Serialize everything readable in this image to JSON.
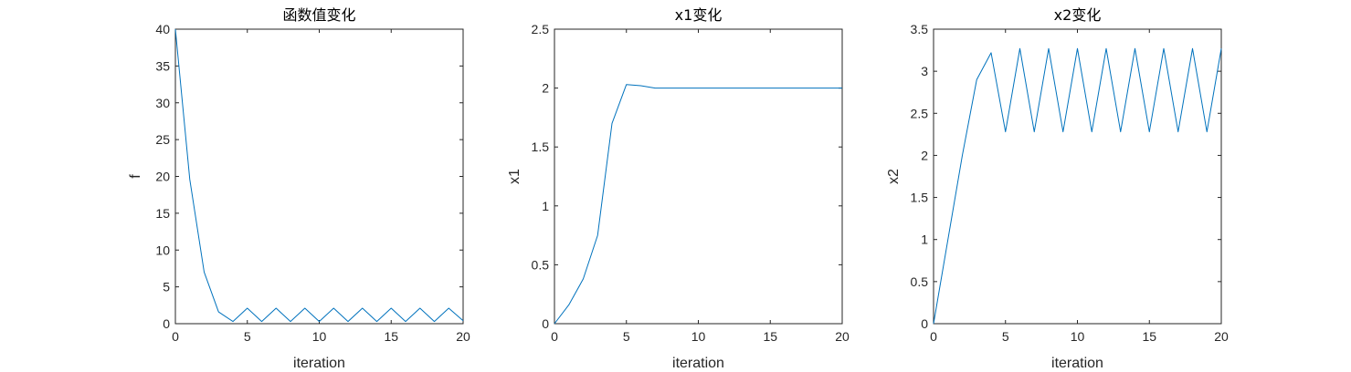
{
  "colors": {
    "series": "#0072bd",
    "axis": "#262626",
    "background": "#ffffff"
  },
  "chart_data": [
    {
      "type": "line",
      "title": "函数值变化",
      "xlabel": "iteration",
      "ylabel": "f",
      "xlim": [
        0,
        20
      ],
      "ylim": [
        0,
        40
      ],
      "xticks": [
        0,
        5,
        10,
        15,
        20
      ],
      "yticks": [
        0,
        5,
        10,
        15,
        20,
        25,
        30,
        35,
        40
      ],
      "xtick_labels": [
        "0",
        "5",
        "10",
        "15",
        "20"
      ],
      "ytick_labels": [
        "0",
        "5",
        "10",
        "15",
        "20",
        "25",
        "30",
        "35",
        "40"
      ],
      "grid": false,
      "series": [
        {
          "x": [
            0,
            1,
            2,
            3,
            4,
            5,
            6,
            7,
            8,
            9,
            10,
            11,
            12,
            13,
            14,
            15,
            16,
            17,
            18,
            19,
            20
          ],
          "values": [
            40,
            19.6,
            7.0,
            1.6,
            0.3,
            2.1,
            0.3,
            2.1,
            0.3,
            2.1,
            0.3,
            2.1,
            0.3,
            2.1,
            0.3,
            2.1,
            0.3,
            2.1,
            0.3,
            2.1,
            0.4
          ]
        }
      ]
    },
    {
      "type": "line",
      "title": "x1变化",
      "xlabel": "iteration",
      "ylabel": "x1",
      "xlim": [
        0,
        20
      ],
      "ylim": [
        0,
        2.5
      ],
      "xticks": [
        0,
        5,
        10,
        15,
        20
      ],
      "yticks": [
        0,
        0.5,
        1,
        1.5,
        2,
        2.5
      ],
      "xtick_labels": [
        "0",
        "5",
        "10",
        "15",
        "20"
      ],
      "ytick_labels": [
        "0",
        "0.5",
        "1",
        "1.5",
        "2",
        "2.5"
      ],
      "grid": false,
      "series": [
        {
          "x": [
            0,
            1,
            2,
            3,
            4,
            5,
            6,
            7,
            8,
            9,
            10,
            11,
            12,
            13,
            14,
            15,
            16,
            17,
            18,
            19,
            20
          ],
          "values": [
            0,
            0.16,
            0.38,
            0.75,
            1.7,
            2.03,
            2.02,
            2.0,
            2.0,
            2.0,
            2.0,
            2.0,
            2.0,
            2.0,
            2.0,
            2.0,
            2.0,
            2.0,
            2.0,
            2.0,
            2.0
          ]
        }
      ]
    },
    {
      "type": "line",
      "title": "x2变化",
      "xlabel": "iteration",
      "ylabel": "x2",
      "xlim": [
        0,
        20
      ],
      "ylim": [
        0,
        3.5
      ],
      "xticks": [
        0,
        5,
        10,
        15,
        20
      ],
      "yticks": [
        0,
        0.5,
        1,
        1.5,
        2,
        2.5,
        3,
        3.5
      ],
      "xtick_labels": [
        "0",
        "5",
        "10",
        "15",
        "20"
      ],
      "ytick_labels": [
        "0",
        "0.5",
        "1",
        "1.5",
        "2",
        "2.5",
        "3",
        "3.5"
      ],
      "grid": false,
      "series": [
        {
          "x": [
            0,
            1,
            2,
            3,
            4,
            5,
            6,
            7,
            8,
            9,
            10,
            11,
            12,
            13,
            14,
            15,
            16,
            17,
            18,
            19,
            20
          ],
          "values": [
            0,
            1.0,
            2.0,
            2.9,
            3.22,
            2.28,
            3.27,
            2.28,
            3.27,
            2.28,
            3.27,
            2.28,
            3.27,
            2.28,
            3.27,
            2.28,
            3.27,
            2.28,
            3.27,
            2.28,
            3.27
          ]
        }
      ]
    }
  ]
}
